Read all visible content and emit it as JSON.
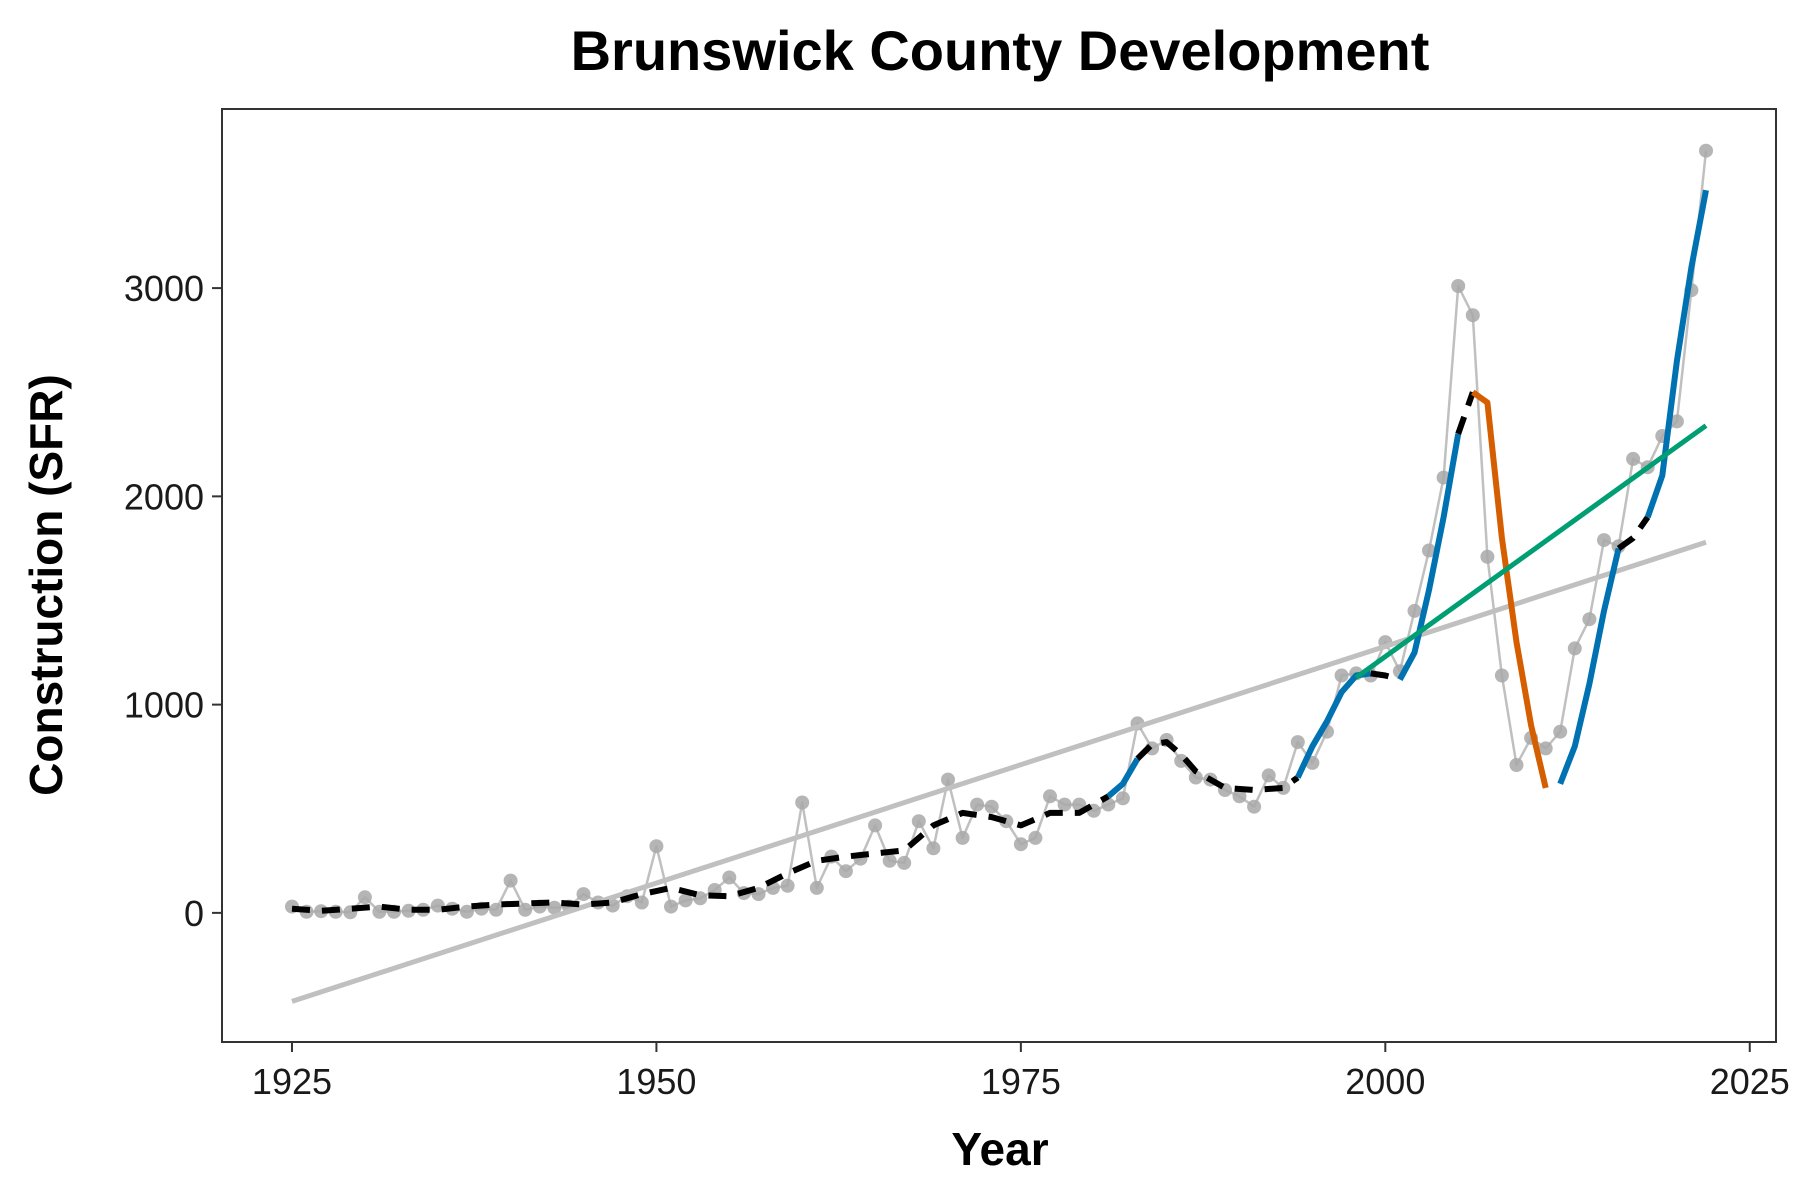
{
  "chart_data": {
    "type": "line",
    "title": "Brunswick County Development",
    "xlabel": "Year",
    "ylabel": "Construction (SFR)",
    "xlim": [
      1920.2,
      2026.8
    ],
    "ylim": [
      -620,
      3860
    ],
    "x_ticks": [
      1925,
      1950,
      1975,
      2000,
      2025
    ],
    "x_tick_labels": [
      "1925",
      "1950",
      "1975",
      "2000",
      "2025"
    ],
    "y_ticks": [
      0,
      1000,
      2000,
      3000
    ],
    "y_tick_labels": [
      "0",
      "1000",
      "2000",
      "3000"
    ],
    "grid": false,
    "legend": "none",
    "colors": {
      "observed": "#a8a8a8",
      "observed_line": "#c0c0c0",
      "overall_trend": "#c0c0c0",
      "smooth_stable": "#000000",
      "smooth_increasing": "#0072b2",
      "smooth_decreasing": "#d55e00",
      "recent_trend": "#009e73"
    },
    "series": [
      {
        "role": "observed",
        "style": "points+line",
        "x": [
          1925,
          1926,
          1927,
          1928,
          1929,
          1930,
          1931,
          1932,
          1933,
          1934,
          1935,
          1936,
          1937,
          1938,
          1939,
          1940,
          1941,
          1942,
          1943,
          1944,
          1945,
          1946,
          1947,
          1948,
          1949,
          1950,
          1951,
          1952,
          1953,
          1954,
          1955,
          1956,
          1957,
          1958,
          1959,
          1960,
          1961,
          1962,
          1963,
          1964,
          1965,
          1966,
          1967,
          1968,
          1969,
          1970,
          1971,
          1972,
          1973,
          1974,
          1975,
          1976,
          1977,
          1978,
          1979,
          1980,
          1981,
          1982,
          1983,
          1984,
          1985,
          1986,
          1987,
          1988,
          1989,
          1990,
          1991,
          1992,
          1993,
          1994,
          1995,
          1996,
          1997,
          1998,
          1999,
          2000,
          2001,
          2002,
          2003,
          2004,
          2005,
          2006,
          2007,
          2008,
          2009,
          2010,
          2011,
          2012,
          2013,
          2014,
          2015,
          2016,
          2017,
          2018,
          2019,
          2020,
          2021,
          2022
        ],
        "y": [
          30,
          5,
          8,
          5,
          3,
          75,
          5,
          5,
          10,
          15,
          35,
          20,
          5,
          20,
          15,
          155,
          15,
          30,
          25,
          30,
          90,
          50,
          35,
          80,
          50,
          320,
          30,
          60,
          70,
          110,
          170,
          95,
          90,
          120,
          130,
          530,
          120,
          270,
          200,
          260,
          420,
          250,
          240,
          440,
          310,
          640,
          360,
          520,
          510,
          440,
          330,
          360,
          560,
          520,
          520,
          490,
          520,
          550,
          910,
          790,
          830,
          730,
          650,
          640,
          590,
          560,
          510,
          660,
          600,
          820,
          720,
          870,
          1140,
          1150,
          1140,
          1300,
          1160,
          1450,
          1740,
          2090,
          3010,
          2870,
          1710,
          1140,
          710,
          840,
          790,
          870,
          1270,
          1410,
          1790,
          1760,
          2180,
          2140,
          2290,
          2360,
          2990,
          3660
        ]
      },
      {
        "role": "overall_trend",
        "style": "line",
        "x": [
          1925,
          2022
        ],
        "y": [
          -425,
          1780
        ]
      },
      {
        "role": "smoothed_trend",
        "style": "segmented-by-direction",
        "x": [
          1925,
          1927,
          1929,
          1931,
          1933,
          1935,
          1937,
          1939,
          1941,
          1943,
          1945,
          1947,
          1949,
          1951,
          1953,
          1955,
          1957,
          1959,
          1961,
          1963,
          1965,
          1967,
          1969,
          1971,
          1973,
          1975,
          1977,
          1979,
          1981,
          1982,
          1983,
          1984,
          1985,
          1986,
          1987,
          1989,
          1991,
          1993,
          1994,
          1995,
          1996,
          1997,
          1998,
          1999,
          2000,
          2001,
          2002,
          2003,
          2004,
          2005,
          2006,
          2007,
          2008,
          2009,
          2010,
          2011,
          2012,
          2013,
          2014,
          2015,
          2016,
          2017,
          2018,
          2019,
          2020,
          2021,
          2022
        ],
        "y": [
          20,
          10,
          20,
          30,
          15,
          15,
          30,
          40,
          45,
          50,
          40,
          50,
          90,
          120,
          85,
          80,
          120,
          190,
          250,
          270,
          285,
          300,
          420,
          480,
          460,
          420,
          480,
          480,
          560,
          620,
          740,
          810,
          820,
          760,
          680,
          600,
          590,
          600,
          650,
          800,
          920,
          1060,
          1140,
          1150,
          1140,
          1120,
          1250,
          1550,
          1900,
          2300,
          2500,
          2450,
          1800,
          1300,
          900,
          600,
          620,
          800,
          1100,
          1450,
          1750,
          1800,
          1900,
          2100,
          2650,
          3100,
          3470
        ],
        "direction": [
          "stable",
          "stable",
          "stable",
          "stable",
          "stable",
          "stable",
          "stable",
          "stable",
          "stable",
          "stable",
          "stable",
          "stable",
          "stable",
          "stable",
          "stable",
          "stable",
          "stable",
          "stable",
          "stable",
          "stable",
          "stable",
          "stable",
          "stable",
          "stable",
          "stable",
          "stable",
          "stable",
          "stable",
          "increasing",
          "increasing",
          "stable",
          "stable",
          "stable",
          "stable",
          "stable",
          "stable",
          "stable",
          "stable",
          "increasing",
          "increasing",
          "increasing",
          "increasing",
          "increasing",
          "stable",
          "stable",
          "increasing",
          "increasing",
          "increasing",
          "increasing",
          "stable",
          "decreasing",
          "decreasing",
          "decreasing",
          "decreasing",
          "decreasing",
          "gap",
          "increasing",
          "increasing",
          "increasing",
          "increasing",
          "stable",
          "stable",
          "increasing",
          "increasing",
          "increasing",
          "increasing",
          "increasing"
        ]
      },
      {
        "role": "recent_trend",
        "style": "line",
        "x": [
          1998,
          2022
        ],
        "y": [
          1130,
          2340
        ]
      }
    ]
  }
}
